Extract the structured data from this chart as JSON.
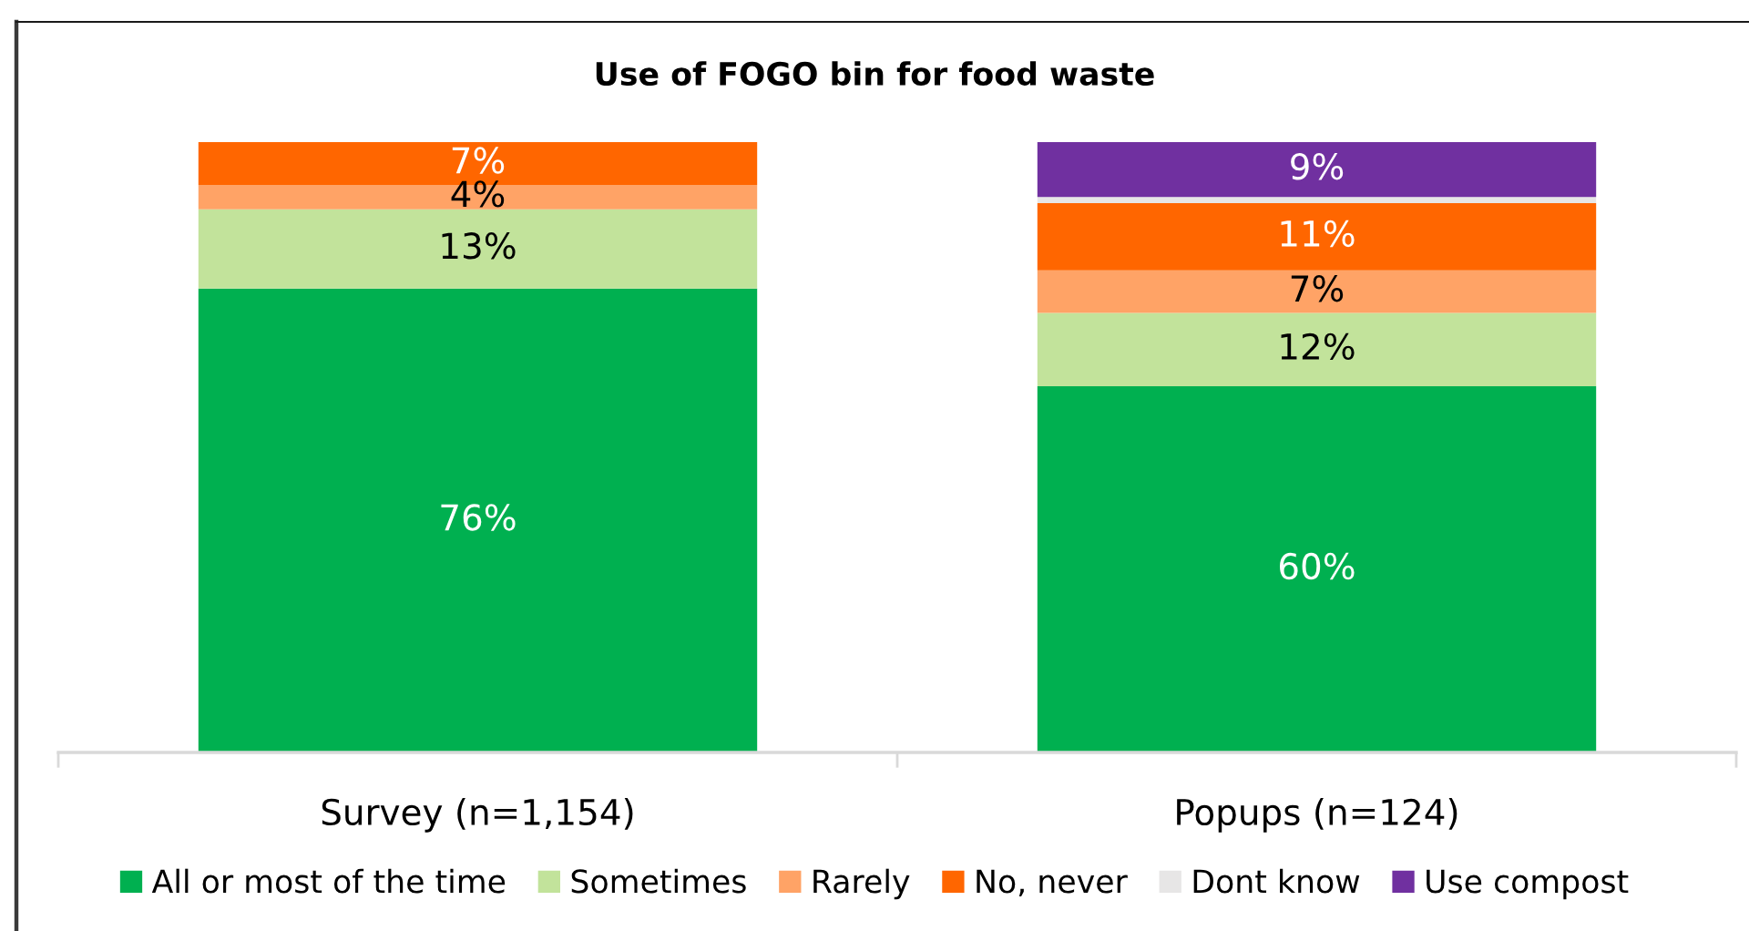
{
  "chart_data": {
    "type": "bar",
    "stacked": true,
    "title": "Use of FOGO bin for food waste",
    "categories": [
      "Survey (n=1,154)",
      "Popups (n=124)"
    ],
    "series": [
      {
        "name": "All or most of the time",
        "color": "#00b050",
        "values": [
          76,
          60
        ],
        "value_labels": [
          "76%",
          "60%"
        ]
      },
      {
        "name": "Sometimes",
        "color": "#c2e39b",
        "values": [
          13,
          12
        ],
        "value_labels": [
          "13%",
          "12%"
        ]
      },
      {
        "name": "Rarely",
        "color": "#ffa366",
        "values": [
          4,
          7
        ],
        "value_labels": [
          "4%",
          "7%"
        ]
      },
      {
        "name": "No, never",
        "color": "#ff6600",
        "values": [
          7,
          11
        ],
        "value_labels": [
          "7%",
          "11%"
        ]
      },
      {
        "name": "Dont know",
        "color": "#e7e6e6",
        "values": [
          0,
          1
        ],
        "value_labels": [
          null,
          null
        ]
      },
      {
        "name": "Use compost",
        "color": "#7030a0",
        "values": [
          0,
          9
        ],
        "value_labels": [
          null,
          "9%"
        ]
      }
    ],
    "legend": "bottom",
    "tick_labels": "x",
    "grid": false
  }
}
